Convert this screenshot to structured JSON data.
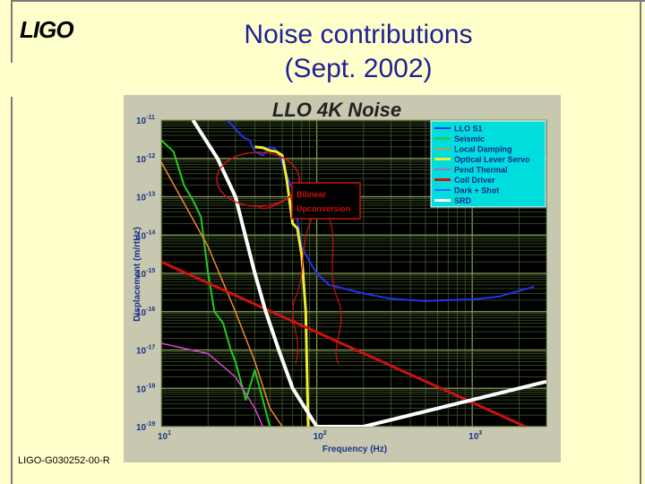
{
  "slide": {
    "logo": "LIGO",
    "title_line1": "Noise contributions",
    "title_line2": "(Sept. 2002)",
    "footer": "LIGO-G030252-00-R"
  },
  "chart_data": {
    "type": "line",
    "title": "LLO 4K Noise",
    "xlabel": "Frequency (Hz)",
    "ylabel": "Displacement (m/rtHz)",
    "xscale": "log",
    "yscale": "log",
    "xlim": [
      10,
      3000
    ],
    "ylim": [
      1e-19,
      1e-11
    ],
    "grid": true,
    "legend_position": "top-right",
    "x_ticks": [
      {
        "base": "10",
        "exp": "1",
        "value": 10
      },
      {
        "base": "10",
        "exp": "2",
        "value": 100
      },
      {
        "base": "10",
        "exp": "3",
        "value": 1000
      }
    ],
    "y_ticks": [
      {
        "base": "10",
        "exp": "-11",
        "value": 1e-11
      },
      {
        "base": "10",
        "exp": "-12",
        "value": 1e-12
      },
      {
        "base": "10",
        "exp": "-13",
        "value": 1e-13
      },
      {
        "base": "10",
        "exp": "-14",
        "value": 1e-14
      },
      {
        "base": "10",
        "exp": "-15",
        "value": 1e-15
      },
      {
        "base": "10",
        "exp": "-16",
        "value": 1e-16
      },
      {
        "base": "10",
        "exp": "-17",
        "value": 1e-17
      },
      {
        "base": "10",
        "exp": "-18",
        "value": 1e-18
      },
      {
        "base": "10",
        "exp": "-19",
        "value": 1e-19
      }
    ],
    "series": [
      {
        "name": "LLO S1",
        "color": "#2233ee",
        "width": 2,
        "x": [
          25,
          28,
          31,
          34,
          37,
          40,
          45,
          50,
          54,
          58,
          62,
          70,
          80,
          90,
          100,
          120,
          150,
          200,
          250,
          300,
          400,
          500,
          700,
          1000,
          1500,
          2000,
          2500
        ],
        "y": [
          1.2e-11,
          8e-12,
          5e-12,
          3.5e-12,
          3e-12,
          1.5e-12,
          1.2e-12,
          2e-12,
          1.8e-12,
          1.1e-12,
          5e-13,
          1.5e-13,
          5e-15,
          2e-15,
          1e-15,
          5e-16,
          4e-16,
          3e-16,
          2.5e-16,
          2.2e-16,
          2e-16,
          1.9e-16,
          2e-16,
          2.1e-16,
          2.5e-16,
          3.5e-16,
          4.5e-16
        ]
      },
      {
        "name": "Seismic",
        "color": "#22cc22",
        "width": 2,
        "x": [
          10,
          12,
          14,
          16,
          18,
          20,
          22,
          25,
          28,
          30,
          35,
          40,
          45,
          50
        ],
        "y": [
          3e-12,
          1.5e-12,
          2e-13,
          8e-14,
          3e-14,
          1e-15,
          1e-16,
          5e-17,
          1e-17,
          5e-18,
          5e-19,
          3e-18,
          5e-19,
          1e-19
        ]
      },
      {
        "name": "Local Damping",
        "color": "#ee8833",
        "width": 1.5,
        "x": [
          10,
          20,
          30,
          40,
          50,
          60
        ],
        "y": [
          8e-13,
          5e-15,
          1e-16,
          5e-18,
          3e-19,
          1e-19
        ]
      },
      {
        "name": "Optical Lever Servo",
        "color": "#eeee33",
        "width": 3,
        "x": [
          40,
          45,
          50,
          55,
          60,
          64,
          70,
          75,
          80,
          85,
          88
        ],
        "y": [
          2e-12,
          1.9e-12,
          1.6e-12,
          1.5e-12,
          1.2e-12,
          3e-13,
          2e-14,
          1.5e-14,
          3e-15,
          1e-16,
          1e-19
        ]
      },
      {
        "name": "Pend Thermal",
        "color": "#dd44cc",
        "width": 1.5,
        "x": [
          10,
          20,
          30,
          40,
          45
        ],
        "y": [
          1.5e-17,
          8e-18,
          2e-18,
          3e-19,
          1e-19
        ]
      },
      {
        "name": "Coil Driver",
        "color": "#cc1111",
        "width": 3,
        "x": [
          10,
          2200
        ],
        "y": [
          2e-15,
          1e-19
        ]
      },
      {
        "name": "Dark + Shot",
        "color": "#3366ff",
        "width": 2,
        "x": [],
        "y": []
      },
      {
        "name": "SRD",
        "color": "#ffffff",
        "width": 4,
        "x": [
          16,
          23,
          30,
          40,
          47,
          57,
          70,
          100,
          200,
          3000
        ],
        "y": [
          1e-11,
          1e-12,
          1e-13,
          1e-15,
          1e-16,
          1e-17,
          1e-18,
          1e-19,
          1e-19,
          1.5e-18
        ]
      }
    ],
    "annotations": [
      {
        "text_line1": "Bilinear",
        "text_line2": "Upconversion",
        "color": "#cc1111"
      }
    ]
  }
}
